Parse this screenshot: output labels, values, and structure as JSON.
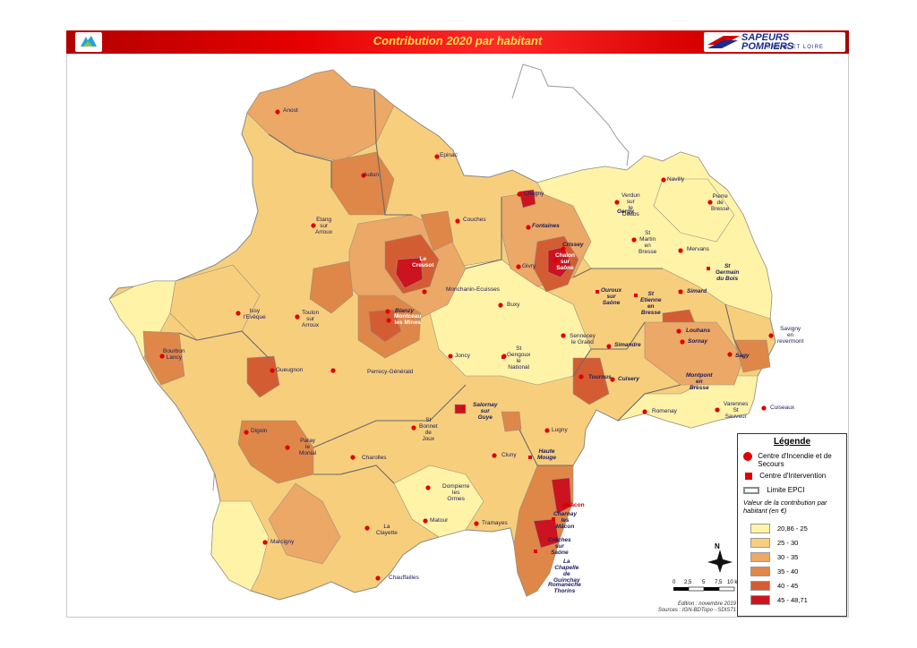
{
  "header": {
    "title": "Contribution 2020 par habitant",
    "logo_right_line1": "SAPEURS",
    "logo_right_line2": "POMPIERS",
    "logo_right_sub": "SAÔNE ET LOIRE"
  },
  "towns": [
    {
      "name": "Anost",
      "style": "normal"
    },
    {
      "name": "Autun",
      "style": "normal"
    },
    {
      "name": "Epinac",
      "style": "normal"
    },
    {
      "name": "Etang\nsur\nArroux",
      "style": "normal"
    },
    {
      "name": "Couches",
      "style": "normal"
    },
    {
      "name": "Chagny",
      "style": "normal"
    },
    {
      "name": "Fontaines",
      "style": "bold"
    },
    {
      "name": "Crissey",
      "style": "bold"
    },
    {
      "name": "Chalon\nsur\nSaône",
      "style": "white"
    },
    {
      "name": "Givry",
      "style": "normal"
    },
    {
      "name": "Verdun\nsur\nle\nDoubs",
      "style": "normal"
    },
    {
      "name": "Gergy",
      "style": "bold"
    },
    {
      "name": "Navilly",
      "style": "normal"
    },
    {
      "name": "Pierre\nde\nBresse",
      "style": "normal"
    },
    {
      "name": "St\nMartin\nen\nBresse",
      "style": "normal"
    },
    {
      "name": "Mervans",
      "style": "normal"
    },
    {
      "name": "St\nGermain\ndu Bois",
      "style": "bold"
    },
    {
      "name": "Le\nCreusot",
      "style": "white"
    },
    {
      "name": "Monchanin-Ecuisses",
      "style": "normal"
    },
    {
      "name": "Issy\nl'Evêque",
      "style": "normal"
    },
    {
      "name": "Toulon\nsur\nArroux",
      "style": "normal"
    },
    {
      "name": "Blanzy",
      "style": "bold"
    },
    {
      "name": "Montceau\nles Mines",
      "style": "white"
    },
    {
      "name": "Buxy",
      "style": "normal"
    },
    {
      "name": "Ouroux\nsur\nSaône",
      "style": "bold"
    },
    {
      "name": "St\nEtienne\nen\nBresse",
      "style": "bold"
    },
    {
      "name": "Simard",
      "style": "bold"
    },
    {
      "name": "Louhans",
      "style": "bold"
    },
    {
      "name": "Sornay",
      "style": "bold"
    },
    {
      "name": "Savigny\nen\nrevermont",
      "style": "normal"
    },
    {
      "name": "Bourbon\nLancy",
      "style": "normal"
    },
    {
      "name": "Gueugnon",
      "style": "normal"
    },
    {
      "name": "Perrecy-Générald",
      "style": "normal"
    },
    {
      "name": "Joncy",
      "style": "normal"
    },
    {
      "name": "St\nGengoux\nle\nNational",
      "style": "normal"
    },
    {
      "name": "Sennecey\nle Grand",
      "style": "normal"
    },
    {
      "name": "Simandre",
      "style": "bold"
    },
    {
      "name": "Sagy",
      "style": "bold"
    },
    {
      "name": "Tournus",
      "style": "bold"
    },
    {
      "name": "Cuisery",
      "style": "bold"
    },
    {
      "name": "Montpont\nen\nBresse",
      "style": "bold"
    },
    {
      "name": "Romenay",
      "style": "normal"
    },
    {
      "name": "Varennes\nSt\nSauveur",
      "style": "normal"
    },
    {
      "name": "Cuiseaux",
      "style": "normal"
    },
    {
      "name": "Salornay\nsur\nGuye",
      "style": "bold"
    },
    {
      "name": "St\nBonnet\nde\nJoux",
      "style": "normal"
    },
    {
      "name": "Digoin",
      "style": "normal"
    },
    {
      "name": "Paray\nle\nMonial",
      "style": "normal"
    },
    {
      "name": "Charolles",
      "style": "normal"
    },
    {
      "name": "Lugny",
      "style": "normal"
    },
    {
      "name": "Cluny",
      "style": "normal"
    },
    {
      "name": "Haute\nMouge",
      "style": "bold"
    },
    {
      "name": "Dompierre\nles\nOrmes",
      "style": "normal"
    },
    {
      "name": "Mâcon",
      "style": "red"
    },
    {
      "name": "Charnay\nles\nMâcon",
      "style": "bold"
    },
    {
      "name": "Matour",
      "style": "normal"
    },
    {
      "name": "Tramayes",
      "style": "normal"
    },
    {
      "name": "La\nClayette",
      "style": "normal"
    },
    {
      "name": "Marcigny",
      "style": "normal"
    },
    {
      "name": "Chauffailles",
      "style": "normal"
    },
    {
      "name": "Crêches\nsur\nSaône",
      "style": "bold"
    },
    {
      "name": "La\nChapelle\nde\nGuinchay",
      "style": "bold"
    },
    {
      "name": "Romanèche\nThorins",
      "style": "bold"
    }
  ],
  "legend": {
    "title": "Légende",
    "cis_label": "Centre d'Incendie et de Secours",
    "ci_label": "Centre d'Intervention",
    "epci_label": "Limite EPCI",
    "value_title": "Valeur de la contribution par habitant (en €)",
    "classes": [
      {
        "range": "20,86 - 25",
        "color": "#fff3a8"
      },
      {
        "range": "25 - 30",
        "color": "#f7cf7c"
      },
      {
        "range": "30 - 35",
        "color": "#eba866"
      },
      {
        "range": "35 - 40",
        "color": "#de8748"
      },
      {
        "range": "40 - 45",
        "color": "#d45c33"
      },
      {
        "range": "45 - 48,71",
        "color": "#cc1420"
      }
    ]
  },
  "north_label": "N",
  "scale": {
    "ticks": [
      "0",
      "2,5",
      "5",
      "7,5",
      "10 km"
    ]
  },
  "credits": {
    "line1": "Edition : novembre 2019",
    "line2": "Sources : IGN-BDTopo - SDIS71"
  },
  "colors": {
    "header_red": "#e60000",
    "marker_red": "#e00000",
    "boundary": "#8a8a8a"
  }
}
